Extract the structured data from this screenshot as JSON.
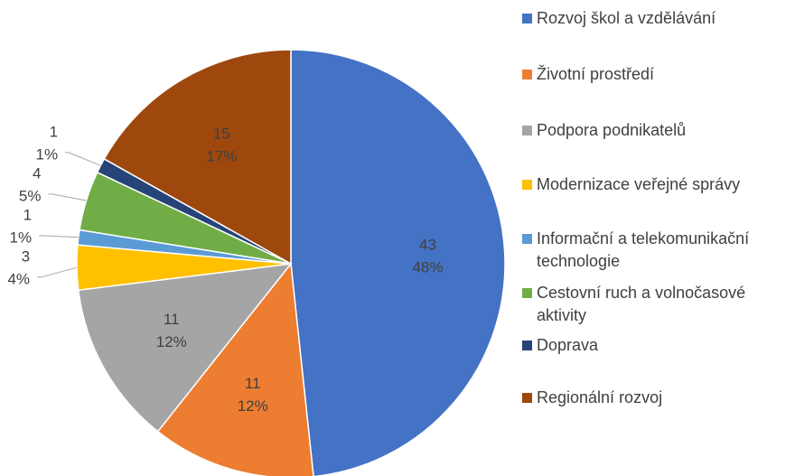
{
  "chart_data": {
    "type": "pie",
    "categories": [
      "Rozvoj škol a vzdělávání",
      "Životní prostředí",
      "Podpora podnikatelů",
      "Modernizace veřejné správy",
      "Informační a telekomunikační technologie",
      "Cestovní ruch a volnočasové aktivity",
      "Doprava",
      "Regionální rozvoj"
    ],
    "values": [
      43,
      11,
      11,
      3,
      1,
      4,
      1,
      15
    ],
    "percent_labels": [
      "48%",
      "12%",
      "12%",
      "4%",
      "1%",
      "5%",
      "1%",
      "17%"
    ],
    "colors": [
      "#4472c4",
      "#ed7d31",
      "#a5a5a5",
      "#ffc000",
      "#5b9bd5",
      "#70ad47",
      "#264478",
      "#9e480e"
    ],
    "legend": "right"
  }
}
